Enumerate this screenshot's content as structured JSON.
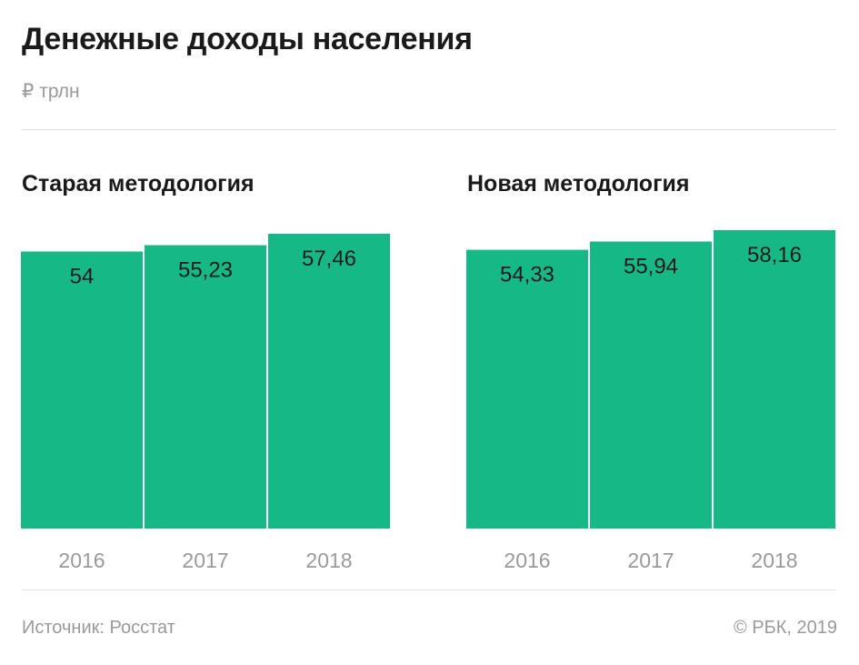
{
  "title": "Денежные доходы населения",
  "unit": "₽ трлн",
  "source": "Источник: Росстат",
  "copyright": "© РБК, 2019",
  "colors": {
    "bar": "#16b886",
    "text": "#1a1a1a",
    "muted": "#9a9a9a",
    "divider": "#e2e2e2"
  },
  "chart_data": [
    {
      "type": "bar",
      "title": "Старая методология",
      "categories": [
        "2016",
        "2017",
        "2018"
      ],
      "values": [
        54,
        55.23,
        57.46
      ],
      "labels": [
        "54",
        "55,23",
        "57,46"
      ],
      "ylabel": "₽ трлн",
      "ylim": [
        0,
        58.16
      ]
    },
    {
      "type": "bar",
      "title": "Новая методология",
      "categories": [
        "2016",
        "2017",
        "2018"
      ],
      "values": [
        54.33,
        55.94,
        58.16
      ],
      "labels": [
        "54,33",
        "55,94",
        "58,16"
      ],
      "ylabel": "₽ трлн",
      "ylim": [
        0,
        58.16
      ]
    }
  ]
}
